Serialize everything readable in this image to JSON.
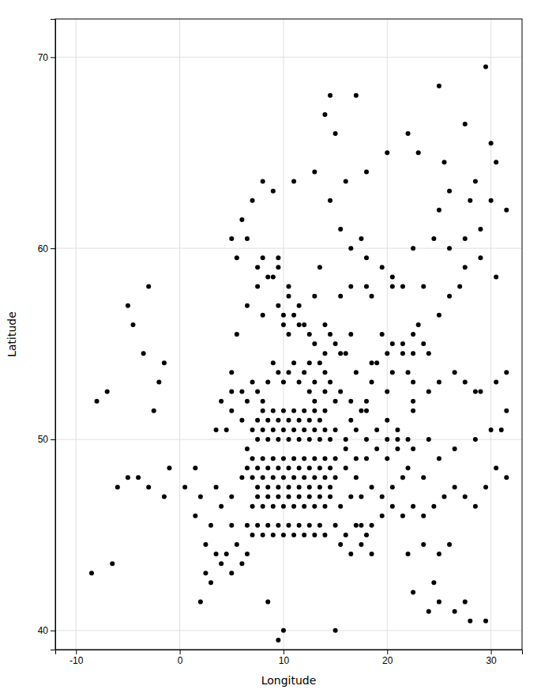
{
  "chart_data": {
    "type": "scatter",
    "xlabel": "Longitude",
    "ylabel": "Latitude",
    "xlim": [
      -12,
      33
    ],
    "ylim": [
      39,
      72
    ],
    "xticks": [
      -10,
      0,
      10,
      20,
      30
    ],
    "yticks": [
      40,
      50,
      60,
      70
    ],
    "grid": true,
    "color": "#000000",
    "x": [
      14.5,
      29.5,
      25.0,
      30.0,
      27.5,
      23.0,
      25.5,
      28.5,
      26.0,
      31.5,
      25.0,
      29.0,
      24.5,
      27.5,
      22.5,
      26.0,
      9.5,
      8.0,
      18.0,
      20.5,
      16.5,
      13.5,
      15.5,
      18.5,
      9.5,
      10.5,
      10.0,
      11.5,
      8.0,
      13.0,
      23.5,
      24.0,
      7.5,
      6.5,
      9.0,
      5.5,
      10.5,
      12.0,
      14.0,
      16.5,
      5.0,
      6.0,
      6.5,
      7.0,
      7.5,
      8.0,
      8.5,
      9.0,
      9.5,
      10.0,
      10.5,
      11.0,
      11.5,
      12.0,
      12.5,
      13.0,
      13.5,
      14.0,
      14.5,
      7.5,
      8.0,
      8.5,
      9.0,
      9.5,
      10.0,
      10.5,
      11.0,
      11.5,
      12.0,
      12.5,
      13.0,
      13.5,
      14.0,
      7.0,
      7.5,
      8.0,
      8.5,
      9.0,
      9.5,
      10.0,
      10.5,
      11.0,
      11.5,
      12.0,
      12.5,
      13.0,
      13.5,
      14.0,
      14.5,
      15.0,
      16.0,
      17.0,
      6.5,
      7.0,
      7.5,
      8.0,
      8.5,
      9.0,
      9.5,
      10.0,
      10.5,
      11.0,
      11.5,
      12.0,
      12.5,
      13.0,
      13.5,
      14.0,
      14.5,
      15.0,
      16.0,
      17.0,
      18.0,
      19.0,
      20.0,
      21.0,
      22.0,
      6.0,
      6.5,
      7.0,
      7.5,
      8.0,
      8.5,
      9.0,
      9.5,
      10.0,
      10.5,
      11.0,
      11.5,
      12.0,
      12.5,
      13.0,
      13.5,
      14.0,
      14.5,
      15.0,
      16.0,
      17.0,
      18.0,
      19.0,
      20.0,
      21.0,
      7.0,
      7.5,
      8.0,
      8.5,
      9.0,
      9.5,
      10.0,
      10.5,
      11.0,
      11.5,
      12.0,
      12.5,
      13.0,
      13.5,
      14.0,
      14.5,
      15.5,
      16.5,
      6.5,
      7.0,
      7.5,
      8.0,
      8.5,
      9.0,
      9.5,
      10.0,
      10.5,
      11.0,
      11.5,
      12.0,
      12.5,
      13.0,
      13.5,
      14.0,
      15.0,
      16.0,
      17.0,
      18.0,
      15.5,
      16.5,
      17.5,
      18.5,
      22.0,
      23.5,
      25.0,
      26.0,
      -8.5,
      -6.5,
      2.5,
      3.5,
      -3.0,
      -1.5,
      0.5,
      2.0,
      3.5,
      5.0,
      -1.0,
      1.5,
      -4.0,
      -5.0,
      -6.0,
      1.5,
      3.0,
      4.0,
      5.0,
      2.5,
      4.5,
      5.5,
      6.5,
      4.0,
      5.0,
      6.0,
      3.0,
      2.0,
      8.5,
      9.5,
      10.0,
      15.0,
      24.0,
      25.0,
      26.5,
      27.5,
      28.0,
      29.5,
      22.5,
      24.5,
      -8.0,
      -7.0,
      -2.5,
      -2.0,
      -1.5,
      -3.5,
      -4.5,
      -5.0,
      -3.0,
      11.5,
      5.0,
      6.0,
      4.5,
      3.5,
      4.0,
      5.0,
      15.5,
      16.5,
      18.0,
      20.0,
      22.5,
      24.0,
      16.5,
      18.0,
      20.0,
      22.5,
      20.5,
      22.0,
      19.0,
      14.5,
      15.5,
      18.5,
      17.5,
      15.0,
      14.0,
      13.0,
      12.5,
      20.5,
      22.5,
      23.0,
      25.0,
      26.0,
      27.0,
      23.5,
      21.5,
      20.5,
      19.5,
      18.0,
      17.5,
      16.5,
      15.5,
      14.5,
      16.0,
      18.0,
      20.0,
      22.0,
      17.0,
      28.0,
      30.0,
      30.5,
      29.0,
      27.5,
      30.5,
      15.0,
      16.0,
      19.5,
      21.5,
      22.5,
      14.0,
      13.0,
      12.5,
      11.0,
      10.0,
      10.5,
      9.5,
      8.5,
      7.5,
      6.5,
      5.5,
      5.0,
      6.0,
      7.0,
      8.0,
      9.0,
      11.0,
      13.0,
      15.0,
      14.0,
      25.0,
      26.5,
      27.5,
      28.5,
      24.0,
      23.5,
      22.0,
      21.5,
      20.5,
      19.5,
      18.5,
      17.5,
      17.5,
      18.5,
      19.5,
      20.5,
      21.5,
      22.5,
      23.5,
      24.5,
      25.5,
      26.5,
      27.5,
      28.5,
      29.5,
      30.5,
      31.5,
      29.0,
      30.5,
      31.5,
      31.0,
      31.5,
      30.0,
      28.5,
      26.5,
      25.0,
      22.5,
      21.0,
      17.0,
      18.5,
      20.0,
      21.5,
      22.5
    ],
    "values": [
      68.0,
      69.5,
      68.5,
      65.5,
      66.5,
      65.0,
      64.5,
      63.5,
      63.0,
      62.0,
      62.0,
      61.0,
      60.5,
      60.5,
      60.0,
      60.0,
      59.5,
      59.5,
      58.0,
      58.5,
      58.0,
      59.0,
      57.5,
      57.5,
      57.0,
      57.5,
      56.0,
      57.0,
      56.5,
      57.5,
      55.0,
      54.5,
      58.0,
      57.0,
      58.5,
      55.5,
      55.5,
      56.0,
      56.0,
      55.5,
      53.5,
      52.5,
      52.0,
      53.0,
      52.5,
      52.0,
      53.0,
      54.0,
      53.5,
      53.0,
      53.5,
      54.0,
      53.0,
      53.5,
      54.0,
      53.0,
      54.0,
      53.5,
      53.0,
      51.0,
      51.5,
      51.0,
      51.5,
      51.0,
      51.5,
      51.0,
      51.5,
      51.0,
      51.5,
      51.0,
      51.5,
      51.0,
      51.5,
      50.5,
      50.0,
      50.5,
      50.0,
      50.5,
      50.0,
      50.5,
      50.0,
      50.5,
      50.0,
      50.5,
      50.0,
      50.5,
      50.0,
      50.5,
      50.0,
      50.5,
      50.0,
      50.5,
      49.5,
      49.0,
      48.5,
      49.0,
      48.5,
      49.0,
      48.5,
      49.0,
      48.5,
      49.0,
      48.5,
      49.0,
      48.5,
      49.0,
      48.5,
      49.0,
      48.5,
      49.0,
      49.5,
      49.0,
      50.0,
      50.5,
      50.0,
      50.5,
      50.0,
      48.0,
      48.5,
      48.0,
      47.5,
      48.0,
      47.5,
      48.0,
      47.5,
      48.0,
      47.5,
      48.0,
      47.5,
      48.0,
      47.5,
      48.0,
      47.5,
      48.0,
      47.5,
      48.0,
      48.5,
      48.0,
      49.0,
      49.5,
      49.0,
      49.5,
      46.5,
      47.0,
      46.5,
      47.0,
      46.5,
      47.0,
      46.5,
      47.0,
      46.5,
      47.0,
      46.5,
      47.0,
      46.5,
      47.0,
      46.5,
      47.0,
      46.5,
      47.0,
      45.5,
      45.0,
      45.5,
      45.0,
      45.5,
      45.0,
      45.5,
      45.0,
      45.5,
      45.0,
      45.5,
      45.0,
      45.5,
      45.0,
      45.5,
      45.0,
      45.5,
      45.0,
      45.5,
      45.0,
      44.5,
      44.0,
      44.5,
      44.0,
      44.0,
      44.5,
      44.0,
      44.5,
      43.0,
      43.5,
      43.0,
      44.0,
      47.5,
      47.0,
      47.5,
      47.0,
      47.5,
      47.0,
      48.5,
      48.5,
      48.0,
      48.0,
      47.5,
      46.0,
      45.5,
      46.5,
      45.5,
      44.5,
      44.0,
      44.5,
      44.0,
      43.5,
      43.0,
      43.5,
      42.5,
      41.5,
      41.5,
      39.5,
      40.0,
      40.0,
      41.0,
      41.5,
      41.0,
      41.5,
      40.5,
      40.5,
      42.0,
      42.5,
      52.0,
      52.5,
      51.5,
      53.0,
      54.0,
      54.5,
      56.0,
      57.0,
      58.0,
      56.0,
      51.5,
      51.0,
      50.5,
      50.5,
      52.0,
      52.5,
      52.5,
      52.0,
      52.0,
      52.5,
      52.0,
      52.5,
      51.0,
      51.5,
      51.0,
      51.5,
      53.5,
      53.5,
      54.0,
      55.5,
      54.5,
      53.0,
      51.5,
      52.0,
      52.5,
      52.0,
      52.5,
      55.0,
      55.5,
      56.0,
      56.5,
      57.5,
      58.0,
      58.0,
      58.0,
      58.0,
      59.0,
      59.5,
      60.5,
      60.0,
      61.0,
      62.5,
      63.5,
      64.0,
      65.0,
      66.0,
      68.0,
      62.5,
      62.5,
      64.5,
      59.5,
      59.0,
      58.5,
      55.0,
      54.5,
      55.5,
      55.0,
      54.5,
      54.5,
      55.0,
      55.5,
      56.5,
      56.5,
      58.0,
      59.0,
      58.5,
      59.0,
      60.5,
      59.5,
      60.5,
      61.5,
      62.5,
      63.5,
      63.0,
      63.5,
      64.0,
      66.0,
      67.0,
      53.0,
      53.5,
      53.0,
      52.5,
      50.0,
      48.0,
      48.5,
      48.0,
      47.5,
      47.0,
      47.5,
      47.0,
      45.5,
      45.5,
      46.0,
      46.5,
      46.0,
      46.5,
      46.0,
      46.5,
      47.0,
      47.5,
      47.0,
      46.5,
      47.5,
      48.5,
      48.0,
      52.5,
      53.0,
      53.5,
      50.5,
      51.5,
      50.5,
      50.0,
      49.5,
      49.0,
      49.5,
      50.0,
      53.5,
      54.0,
      54.5,
      54.5,
      53.0
    ]
  }
}
